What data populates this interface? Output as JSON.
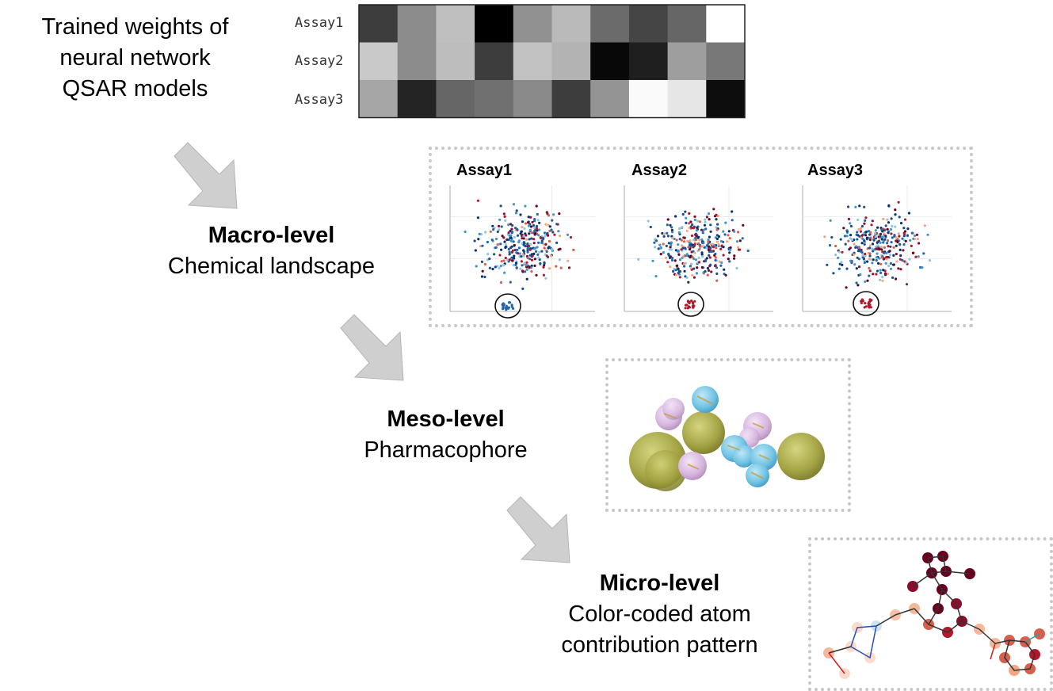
{
  "step0": {
    "lines": [
      "Trained weights of",
      "neural network",
      "QSAR models"
    ]
  },
  "heatmap": {
    "rows": [
      "Assay1",
      "Assay2",
      "Assay3"
    ],
    "cells": [
      [
        0.24,
        0.55,
        0.75,
        0.0,
        0.57,
        0.73,
        0.42,
        0.27,
        0.4,
        1.0
      ],
      [
        0.79,
        0.55,
        0.74,
        0.24,
        0.76,
        0.7,
        0.03,
        0.12,
        0.62,
        0.47
      ],
      [
        0.65,
        0.14,
        0.4,
        0.44,
        0.54,
        0.24,
        0.58,
        0.98,
        0.9,
        0.05
      ]
    ]
  },
  "macro": {
    "title": "Macro-level",
    "subtitle": "Chemical landscape",
    "panels": [
      "Assay1",
      "Assay2",
      "Assay3"
    ]
  },
  "meso": {
    "title": "Meso-level",
    "subtitle": "Pharmacophore"
  },
  "micro": {
    "title": "Micro-level",
    "subtitle_lines": [
      "Color-coded atom",
      "contribution pattern"
    ]
  },
  "colors": {
    "arrow": "#cfcfcf",
    "dash": "#c8c8c8",
    "red": "#b2182b",
    "blue": "#2166ac",
    "olive": "#a3a33a",
    "lilac": "#d8b8e0",
    "cyan": "#74c6e6"
  }
}
